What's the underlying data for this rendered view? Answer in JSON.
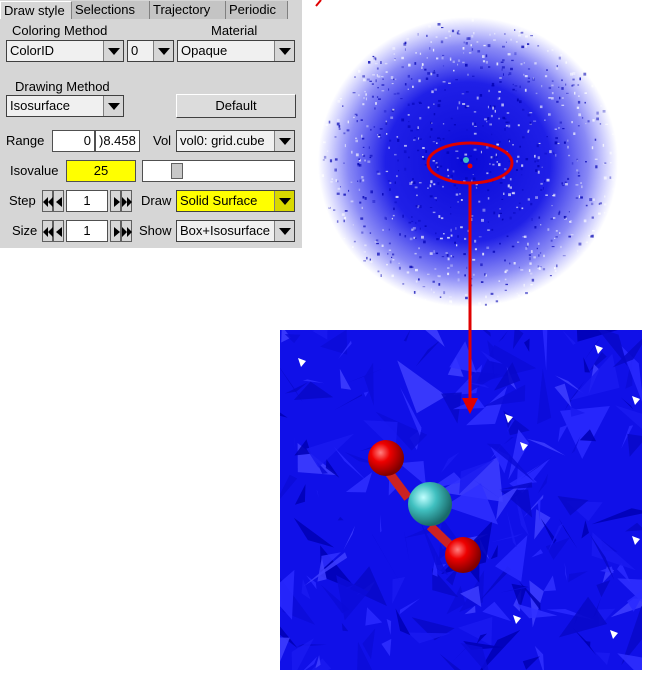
{
  "tabs": [
    "Draw style",
    "Selections",
    "Trajectory",
    "Periodic"
  ],
  "coloring": {
    "label": "Coloring Method",
    "method": "ColorID",
    "id": "0"
  },
  "material": {
    "label": "Material",
    "value": "Opaque"
  },
  "drawing": {
    "label": "Drawing Method",
    "value": "Isosurface"
  },
  "default_button": "Default",
  "range": {
    "label": "Range",
    "min": "0",
    "max": ")8.458"
  },
  "vol": {
    "label": "Vol",
    "value": "vol0: grid.cube"
  },
  "isovalue": {
    "label": "Isovalue",
    "value": "25",
    "slider_level": 0.2
  },
  "step": {
    "label": "Step",
    "value": "1"
  },
  "size": {
    "label": "Size",
    "value": "1"
  },
  "draw": {
    "label": "Draw",
    "value": "Solid Surface"
  },
  "show": {
    "label": "Show",
    "value": "Box+Isosurface"
  },
  "colors": {
    "panel": "#d6d6d6",
    "highlight": "#ffff00",
    "surface": "#1010ee",
    "oxygen": "#ee0000",
    "carbon": "#40c0c0",
    "annotation": "#e00000"
  }
}
